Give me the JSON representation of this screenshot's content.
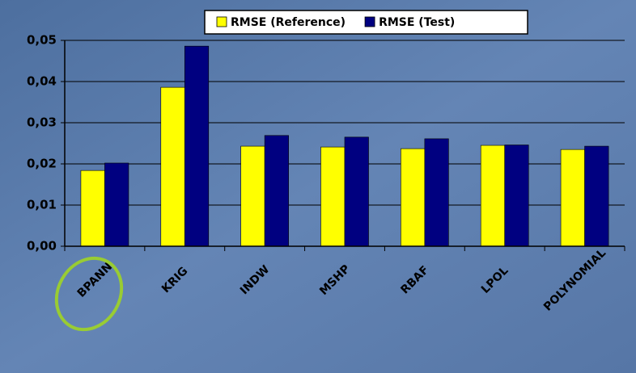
{
  "chart_data": {
    "type": "bar",
    "categories": [
      "BPANN",
      "KRIG",
      "INDW",
      "MSHP",
      "RBAF",
      "LPOL",
      "POLYNOMIAL"
    ],
    "series": [
      {
        "name": "RMSE (Reference)",
        "color": "#ffff00",
        "values": [
          0.0184,
          0.0386,
          0.0243,
          0.0241,
          0.0237,
          0.0245,
          0.0235
        ]
      },
      {
        "name": "RMSE (Test)",
        "color": "#000080",
        "values": [
          0.0202,
          0.0486,
          0.0269,
          0.0265,
          0.0261,
          0.0246,
          0.0243
        ]
      }
    ],
    "ylim": [
      0,
      0.05
    ],
    "yticks": [
      {
        "value": 0,
        "label": "0,00"
      },
      {
        "value": 0.01,
        "label": "0,01"
      },
      {
        "value": 0.02,
        "label": "0,02"
      },
      {
        "value": 0.03,
        "label": "0,03"
      },
      {
        "value": 0.04,
        "label": "0,04"
      },
      {
        "value": 0.05,
        "label": "0,05"
      }
    ],
    "grid": true,
    "legend": "top"
  }
}
